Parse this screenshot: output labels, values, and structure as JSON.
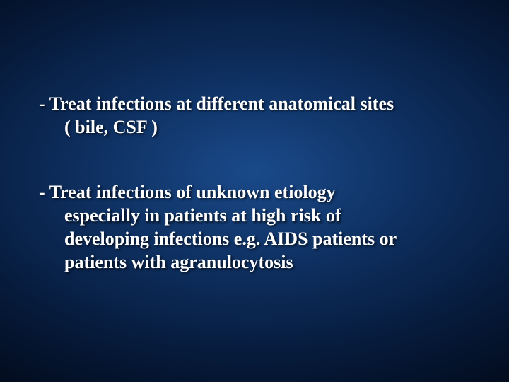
{
  "slide": {
    "background": {
      "gradient_center": "#1a4a8a",
      "gradient_mid": "#0d2d5c",
      "gradient_outer": "#061a3a",
      "gradient_edge": "#020a1a"
    },
    "text_color": "#ffffff",
    "font_family": "Times New Roman",
    "font_size_pt": 26,
    "font_weight": "bold",
    "bullets": [
      {
        "dash": "-",
        "line1": " Treat infections at different anatomical sites",
        "line2": "( bile, CSF )"
      },
      {
        "dash": "-",
        "line1": " Treat infections of unknown etiology",
        "line2": "especially in patients at high risk of",
        "line3": "developing infections e.g. AIDS patients or",
        "line4": "patients with agranulocytosis"
      }
    ]
  }
}
